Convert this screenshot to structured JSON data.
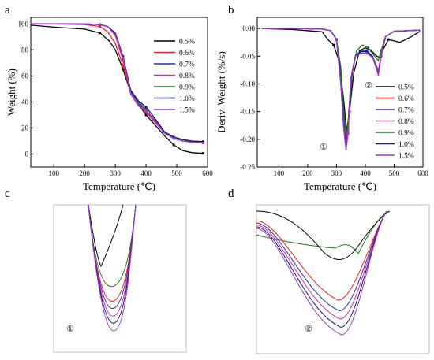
{
  "panel_letters": [
    "a",
    "b",
    "c",
    "d"
  ],
  "peak_labels": {
    "peak1": "①",
    "peak2": "②"
  },
  "legend": [
    "0.5%",
    "0.6%",
    "0.7%",
    "0.8%",
    "0.9%",
    "1.0%",
    "1.5%"
  ],
  "colors": {
    "0.5%": "#000000",
    "0.6%": "#e8261c",
    "0.7%": "#1f2fb8",
    "0.8%": "#e0269f",
    "0.9%": "#1a7a1a",
    "1.0%": "#141478",
    "1.5%": "#9b37c8"
  },
  "chart_data": [
    {
      "panel": "a",
      "type": "line",
      "xlabel": "Temperature (℃)",
      "ylabel": "Weight (%)",
      "xlim": [
        25,
        600
      ],
      "ylim": [
        -10,
        105
      ],
      "xticks": [
        100,
        200,
        300,
        400,
        500,
        600
      ],
      "yticks": [
        0,
        20,
        40,
        60,
        80,
        100
      ],
      "legend_position": "right",
      "series": [
        {
          "name": "0.5%",
          "x": [
            25,
            100,
            200,
            250,
            280,
            300,
            325,
            350,
            375,
            400,
            430,
            460,
            490,
            520,
            550,
            585
          ],
          "y": [
            99,
            97.5,
            96,
            93,
            87,
            80,
            65,
            47,
            38,
            30,
            22,
            14,
            7,
            2.5,
            1,
            0.5
          ]
        },
        {
          "name": "0.6%",
          "x": [
            25,
            100,
            200,
            250,
            275,
            300,
            325,
            350,
            375,
            400,
            430,
            460,
            490,
            520,
            550,
            585
          ],
          "y": [
            100,
            100,
            99.5,
            98,
            94,
            85,
            68,
            47,
            38,
            33,
            26,
            17,
            13,
            11,
            10,
            9.5
          ]
        },
        {
          "name": "0.7%",
          "x": [
            25,
            100,
            200,
            250,
            275,
            300,
            325,
            350,
            375,
            400,
            430,
            460,
            490,
            520,
            550,
            585
          ],
          "y": [
            100,
            100,
            100,
            99.5,
            98,
            92,
            74,
            48,
            40,
            34,
            25,
            16,
            12,
            10,
            9.5,
            9
          ]
        },
        {
          "name": "0.8%",
          "x": [
            25,
            100,
            200,
            250,
            275,
            300,
            325,
            350,
            375,
            400,
            430,
            460,
            490,
            520,
            550,
            585
          ],
          "y": [
            100,
            100,
            100,
            99.5,
            98,
            91,
            72,
            46,
            37,
            32,
            24,
            16,
            12,
            10,
            9,
            8.5
          ]
        },
        {
          "name": "0.9%",
          "x": [
            25,
            100,
            200,
            250,
            275,
            300,
            325,
            350,
            375,
            400,
            430,
            460,
            490,
            520,
            550,
            585
          ],
          "y": [
            100,
            100,
            100,
            99.5,
            98,
            92,
            74,
            47,
            39,
            34,
            25,
            16,
            12,
            10,
            9.5,
            9
          ]
        },
        {
          "name": "1.0%",
          "x": [
            25,
            100,
            200,
            250,
            275,
            300,
            325,
            350,
            375,
            400,
            430,
            460,
            490,
            520,
            550,
            585
          ],
          "y": [
            100,
            100,
            100,
            99.5,
            98,
            93,
            75,
            49,
            41,
            36,
            27,
            17,
            13,
            11,
            10,
            9.5
          ]
        },
        {
          "name": "1.5%",
          "x": [
            25,
            100,
            200,
            250,
            275,
            300,
            325,
            350,
            375,
            400,
            430,
            460,
            490,
            520,
            550,
            585
          ],
          "y": [
            100,
            100,
            100,
            99.5,
            98,
            92,
            74,
            47,
            38,
            33,
            25,
            16,
            12,
            10,
            9,
            8.5
          ]
        }
      ]
    },
    {
      "panel": "b",
      "type": "line",
      "xlabel": "Temperature (℃)",
      "ylabel": "Deriv. Weight (%/s)",
      "xlim": [
        25,
        600
      ],
      "ylim": [
        -0.25,
        0.02
      ],
      "xticks": [
        100,
        200,
        300,
        400,
        500,
        600
      ],
      "yticks": [
        0.0,
        -0.05,
        -0.1,
        -0.15,
        -0.2,
        -0.25
      ],
      "legend_position": "right",
      "series": [
        {
          "name": "0.5%",
          "x": [
            40,
            150,
            250,
            270,
            290,
            310,
            325,
            335,
            345,
            360,
            380,
            400,
            420,
            440,
            450,
            460,
            480,
            520,
            560,
            590
          ],
          "y": [
            0,
            -0.002,
            -0.006,
            -0.02,
            -0.03,
            -0.06,
            -0.13,
            -0.185,
            -0.15,
            -0.08,
            -0.04,
            -0.035,
            -0.04,
            -0.05,
            -0.052,
            -0.04,
            -0.02,
            -0.025,
            -0.015,
            -0.005
          ]
        },
        {
          "name": "0.6%",
          "x": [
            40,
            150,
            250,
            280,
            300,
            315,
            325,
            333,
            340,
            350,
            365,
            385,
            405,
            425,
            440,
            445,
            455,
            470,
            500,
            590
          ],
          "y": [
            0,
            0,
            -0.001,
            -0.004,
            -0.02,
            -0.09,
            -0.16,
            -0.2,
            -0.175,
            -0.09,
            -0.05,
            -0.042,
            -0.042,
            -0.05,
            -0.07,
            -0.075,
            -0.05,
            -0.015,
            -0.005,
            -0.003
          ]
        },
        {
          "name": "0.7%",
          "x": [
            40,
            150,
            250,
            280,
            300,
            315,
            325,
            333,
            340,
            350,
            365,
            385,
            405,
            425,
            440,
            445,
            455,
            470,
            500,
            590
          ],
          "y": [
            0,
            0,
            -0.001,
            -0.004,
            -0.02,
            -0.09,
            -0.165,
            -0.205,
            -0.18,
            -0.09,
            -0.05,
            -0.04,
            -0.04,
            -0.05,
            -0.07,
            -0.078,
            -0.05,
            -0.015,
            -0.005,
            -0.003
          ]
        },
        {
          "name": "0.8%",
          "x": [
            40,
            150,
            250,
            280,
            300,
            315,
            325,
            333,
            340,
            350,
            365,
            385,
            405,
            425,
            440,
            445,
            455,
            470,
            500,
            590
          ],
          "y": [
            0,
            0,
            -0.001,
            -0.004,
            -0.02,
            -0.1,
            -0.175,
            -0.21,
            -0.185,
            -0.09,
            -0.05,
            -0.042,
            -0.042,
            -0.05,
            -0.072,
            -0.078,
            -0.05,
            -0.015,
            -0.005,
            -0.003
          ]
        },
        {
          "name": "0.9%",
          "x": [
            40,
            150,
            250,
            280,
            300,
            315,
            325,
            335,
            345,
            355,
            370,
            390,
            410,
            425,
            440,
            445,
            455,
            470,
            500,
            590
          ],
          "y": [
            0,
            0,
            -0.001,
            -0.004,
            -0.02,
            -0.07,
            -0.15,
            -0.19,
            -0.15,
            -0.08,
            -0.04,
            -0.03,
            -0.035,
            -0.045,
            -0.055,
            -0.058,
            -0.04,
            -0.015,
            -0.005,
            -0.003
          ]
        },
        {
          "name": "1.0%",
          "x": [
            40,
            150,
            250,
            280,
            300,
            315,
            325,
            333,
            340,
            350,
            365,
            385,
            405,
            425,
            440,
            445,
            455,
            470,
            500,
            590
          ],
          "y": [
            0,
            0,
            -0.001,
            -0.004,
            -0.02,
            -0.1,
            -0.18,
            -0.215,
            -0.19,
            -0.09,
            -0.05,
            -0.042,
            -0.042,
            -0.05,
            -0.075,
            -0.082,
            -0.05,
            -0.015,
            -0.005,
            -0.003
          ]
        },
        {
          "name": "1.5%",
          "x": [
            40,
            150,
            250,
            280,
            300,
            315,
            325,
            333,
            340,
            350,
            365,
            385,
            405,
            425,
            440,
            445,
            455,
            470,
            500,
            590
          ],
          "y": [
            0,
            0,
            -0.001,
            -0.004,
            -0.02,
            -0.1,
            -0.18,
            -0.22,
            -0.19,
            -0.09,
            -0.05,
            -0.045,
            -0.045,
            -0.052,
            -0.075,
            -0.085,
            -0.05,
            -0.015,
            -0.005,
            -0.003
          ]
        }
      ]
    },
    {
      "panel": "c",
      "type": "line",
      "note": "magnified view of peak 1 of panel b",
      "curves": [
        {
          "name": "0.5%",
          "depth": 0.0
        },
        {
          "name": "0.9%",
          "depth": 0.25
        },
        {
          "name": "0.6%",
          "depth": 0.5
        },
        {
          "name": "0.7%",
          "depth": 0.62
        },
        {
          "name": "0.8%",
          "depth": 0.75
        },
        {
          "name": "1.0%",
          "depth": 0.87
        },
        {
          "name": "1.5%",
          "depth": 1.0
        }
      ]
    },
    {
      "panel": "d",
      "type": "line",
      "note": "magnified view of peak 2 of panel b",
      "curves": [
        {
          "name": "0.9%",
          "depth": 0.0
        },
        {
          "name": "0.5%",
          "depth": 0.2
        },
        {
          "name": "0.6%",
          "depth": 0.45
        },
        {
          "name": "0.7%",
          "depth": 0.62
        },
        {
          "name": "0.8%",
          "depth": 0.75
        },
        {
          "name": "1.0%",
          "depth": 0.88
        },
        {
          "name": "1.5%",
          "depth": 1.0
        }
      ]
    }
  ]
}
